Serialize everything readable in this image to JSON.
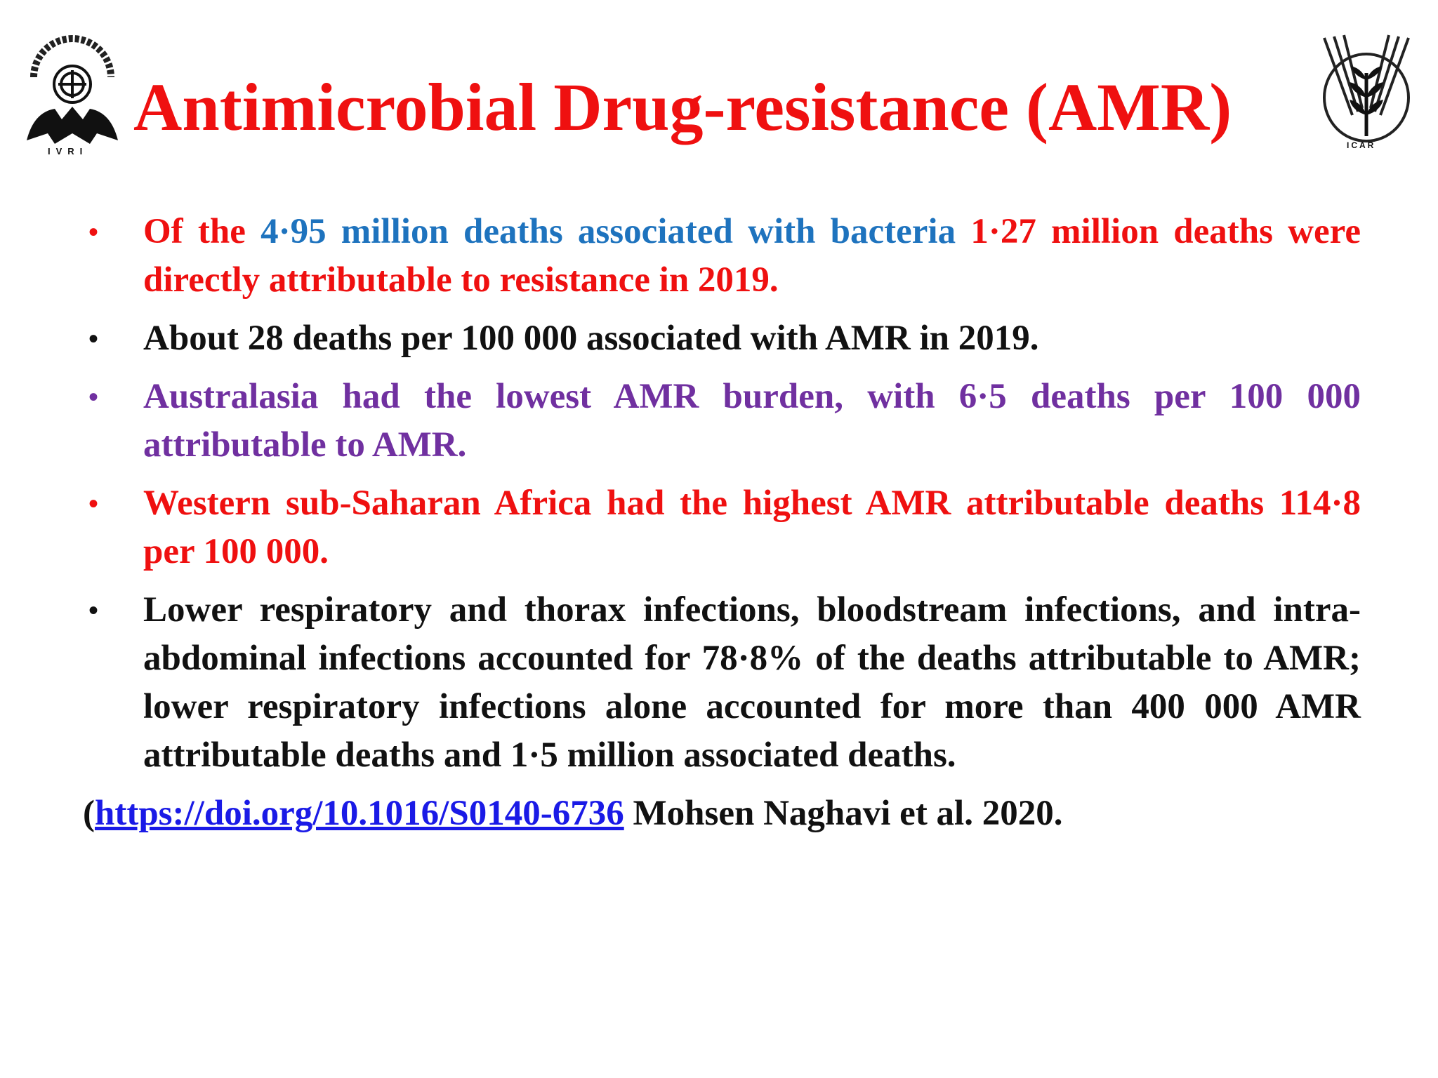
{
  "title": "Antimicrobial Drug-resistance (AMR)",
  "logos": {
    "left_caption": "IVRI",
    "right_caption": "ICAR"
  },
  "colors": {
    "red": "#ef1010",
    "blue": "#1e73be",
    "black": "#111111",
    "purple": "#7030a0",
    "link": "#1a1ae6"
  },
  "bullets": [
    {
      "segments": [
        "Of the ",
        "4·95 million deaths associated with bacteria",
        " 1·27 million deaths were directly attributable to resistance in 2019."
      ]
    },
    {
      "text": "About 28 deaths per 100 000 associated with AMR in 2019."
    },
    {
      "text": "Australasia had the lowest AMR burden, with 6·5 deaths per 100 000 attributable to AMR."
    },
    {
      "text": "Western sub-Saharan Africa had the highest AMR attributable deaths 114·8 per 100 000."
    },
    {
      "text": "Lower respiratory and thorax infections, bloodstream infections, and intra-abdominal infections accounted for 78·8% of the deaths attributable to AMR; lower respiratory infections alone accounted for more than 400 000 AMR attributable deaths and 1·5 million associated deaths."
    }
  ],
  "reference": {
    "open": "(",
    "link_text": "https://doi.org/10.1016/S0140-6736",
    "rest": " Mohsen Naghavi et al. 2020."
  },
  "bullet_symbol": "•"
}
